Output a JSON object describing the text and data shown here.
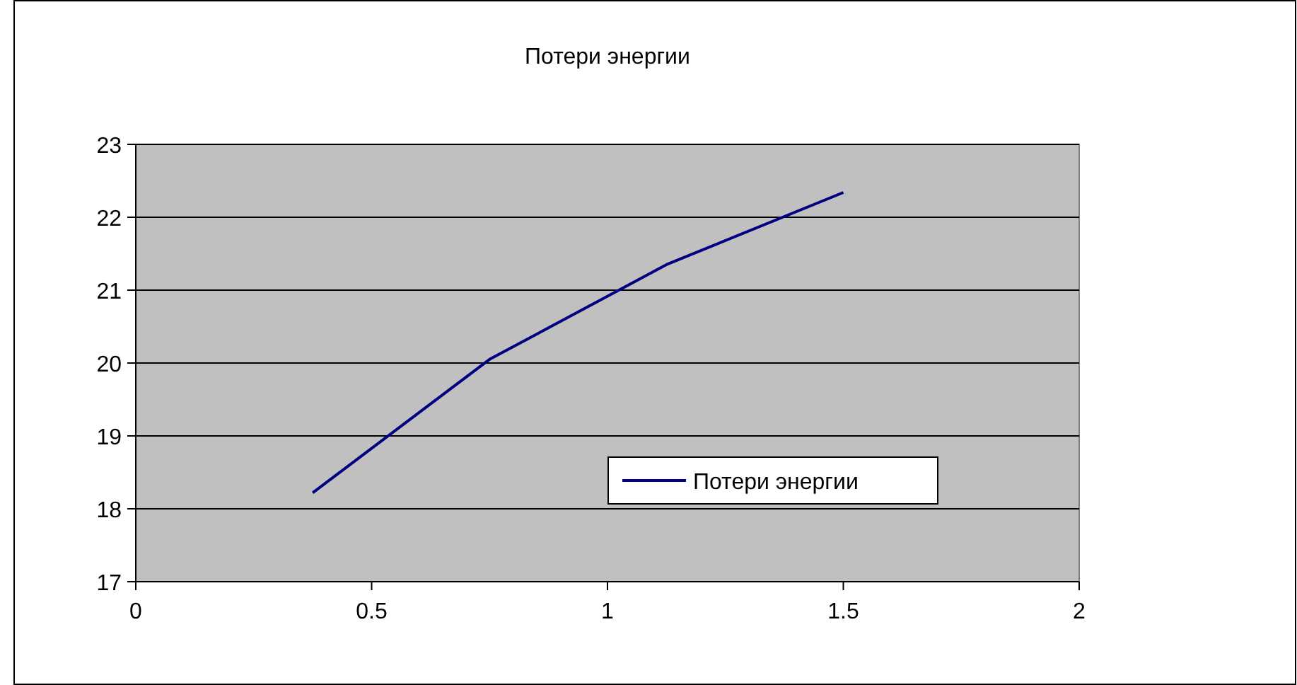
{
  "chart_data": {
    "type": "line",
    "title": "Потери энергии",
    "x": [
      0.375,
      0.75,
      1.125,
      1.5
    ],
    "series": [
      {
        "name": "Потери энергии",
        "color": "#000080",
        "values": [
          18.22,
          20.05,
          21.35,
          22.34
        ]
      }
    ],
    "xlim": [
      0,
      2
    ],
    "xticks": [
      0,
      0.5,
      1,
      1.5,
      2
    ],
    "ylim": [
      17,
      23
    ],
    "yticks": [
      17,
      18,
      19,
      20,
      21,
      22,
      23
    ],
    "grid": "y",
    "legend": "bottom right",
    "marker": "none",
    "line_style": "solid"
  }
}
